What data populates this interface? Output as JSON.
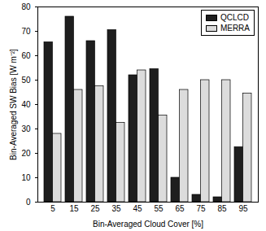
{
  "chart_data": {
    "type": "bar",
    "x_label": "Bin-Averaged Cloud Cover [%]",
    "y_label": "Bin-Averaged SW Bias [W m⁻²]",
    "categories": [
      5,
      15,
      25,
      35,
      45,
      55,
      65,
      75,
      85,
      95
    ],
    "series": [
      {
        "name": "QCLCD",
        "color": "#1e1e1e",
        "values": [
          65.5,
          76,
          66,
          70.5,
          52,
          54.5,
          10,
          3,
          2,
          22.5
        ]
      },
      {
        "name": "MERRA",
        "color": "#dcdcdc",
        "values": [
          28,
          46,
          47.5,
          32.5,
          54,
          35.5,
          46,
          50,
          50,
          44.5
        ]
      }
    ],
    "ylim": [
      0,
      80
    ],
    "yticks": [
      0,
      10,
      20,
      30,
      40,
      50,
      60,
      70,
      80
    ],
    "legend": "top-right",
    "grid": false
  }
}
